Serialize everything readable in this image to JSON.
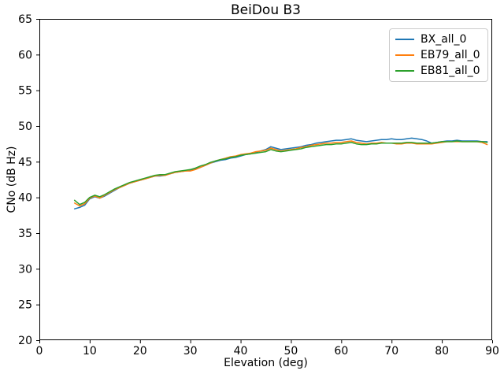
{
  "figure": {
    "background": "#ffffff",
    "frame_color": "#000000",
    "legend_border_color": "#cccccc"
  },
  "chart_data": {
    "type": "line",
    "title": "BeiDou B3",
    "xlabel": "Elevation (deg)",
    "ylabel": "CNo (dB Hz)",
    "xlim": [
      0,
      90
    ],
    "ylim": [
      20,
      65
    ],
    "x_ticks": [
      0,
      10,
      20,
      30,
      40,
      50,
      60,
      70,
      80,
      90
    ],
    "y_ticks": [
      20,
      25,
      30,
      35,
      40,
      45,
      50,
      55,
      60,
      65
    ],
    "grid": false,
    "legend_position": "upper right",
    "x": [
      7,
      8,
      9,
      10,
      11,
      12,
      13,
      14,
      15,
      16,
      17,
      18,
      19,
      20,
      21,
      22,
      23,
      24,
      25,
      26,
      27,
      28,
      29,
      30,
      31,
      32,
      33,
      34,
      35,
      36,
      37,
      38,
      39,
      40,
      41,
      42,
      43,
      44,
      45,
      46,
      47,
      48,
      49,
      50,
      51,
      52,
      53,
      54,
      55,
      56,
      57,
      58,
      59,
      60,
      61,
      62,
      63,
      64,
      65,
      66,
      67,
      68,
      69,
      70,
      71,
      72,
      73,
      74,
      75,
      76,
      77,
      78,
      79,
      80,
      81,
      82,
      83,
      84,
      85,
      86,
      87,
      88,
      89
    ],
    "series": [
      {
        "name": "BX_all_0",
        "color": "#1f77b4",
        "values": [
          38.4,
          38.6,
          38.9,
          39.8,
          40.1,
          39.9,
          40.2,
          40.6,
          41.0,
          41.4,
          41.7,
          42.0,
          42.2,
          42.4,
          42.6,
          42.8,
          43.0,
          43.0,
          43.1,
          43.3,
          43.5,
          43.6,
          43.7,
          43.8,
          44.0,
          44.2,
          44.5,
          44.8,
          45.0,
          45.2,
          45.3,
          45.5,
          45.6,
          45.8,
          46.0,
          46.1,
          46.3,
          46.5,
          46.7,
          47.1,
          46.9,
          46.7,
          46.8,
          46.9,
          47.0,
          47.1,
          47.3,
          47.4,
          47.6,
          47.7,
          47.8,
          47.9,
          48.0,
          48.0,
          48.1,
          48.2,
          48.0,
          47.9,
          47.8,
          47.9,
          48.0,
          48.1,
          48.1,
          48.2,
          48.1,
          48.1,
          48.2,
          48.3,
          48.2,
          48.1,
          47.9,
          47.6,
          47.7,
          47.8,
          47.9,
          47.9,
          48.0,
          47.9,
          47.9,
          47.9,
          47.9,
          47.8,
          47.8
        ]
      },
      {
        "name": "EB79_all_0",
        "color": "#ff7f0e",
        "values": [
          39.2,
          38.8,
          39.1,
          39.9,
          40.2,
          39.9,
          40.3,
          40.7,
          41.1,
          41.4,
          41.7,
          42.0,
          42.2,
          42.4,
          42.6,
          42.8,
          43.0,
          43.1,
          43.1,
          43.3,
          43.5,
          43.6,
          43.7,
          43.7,
          43.9,
          44.2,
          44.5,
          44.8,
          45.1,
          45.3,
          45.5,
          45.7,
          45.8,
          46.0,
          46.1,
          46.2,
          46.4,
          46.5,
          46.6,
          46.9,
          46.7,
          46.5,
          46.6,
          46.7,
          46.8,
          47.0,
          47.1,
          47.3,
          47.4,
          47.5,
          47.6,
          47.6,
          47.7,
          47.7,
          47.8,
          47.9,
          47.7,
          47.6,
          47.5,
          47.6,
          47.6,
          47.7,
          47.6,
          47.6,
          47.5,
          47.5,
          47.6,
          47.6,
          47.5,
          47.5,
          47.5,
          47.5,
          47.6,
          47.7,
          47.8,
          47.8,
          47.8,
          47.8,
          47.8,
          47.8,
          47.8,
          47.7,
          47.4
        ]
      },
      {
        "name": "EB81_all_0",
        "color": "#2ca02c",
        "values": [
          39.6,
          39.0,
          39.3,
          40.0,
          40.3,
          40.1,
          40.4,
          40.8,
          41.2,
          41.5,
          41.8,
          42.1,
          42.3,
          42.5,
          42.7,
          42.9,
          43.1,
          43.2,
          43.2,
          43.4,
          43.6,
          43.7,
          43.8,
          43.9,
          44.1,
          44.4,
          44.6,
          44.9,
          45.1,
          45.3,
          45.4,
          45.6,
          45.7,
          45.9,
          46.0,
          46.1,
          46.2,
          46.3,
          46.4,
          46.7,
          46.5,
          46.4,
          46.5,
          46.6,
          46.7,
          46.8,
          47.0,
          47.1,
          47.2,
          47.3,
          47.4,
          47.4,
          47.5,
          47.5,
          47.6,
          47.7,
          47.5,
          47.4,
          47.4,
          47.5,
          47.5,
          47.6,
          47.6,
          47.6,
          47.6,
          47.6,
          47.7,
          47.7,
          47.6,
          47.6,
          47.6,
          47.6,
          47.7,
          47.8,
          47.8,
          47.8,
          47.9,
          47.8,
          47.8,
          47.8,
          47.8,
          47.8,
          47.7
        ]
      }
    ]
  }
}
